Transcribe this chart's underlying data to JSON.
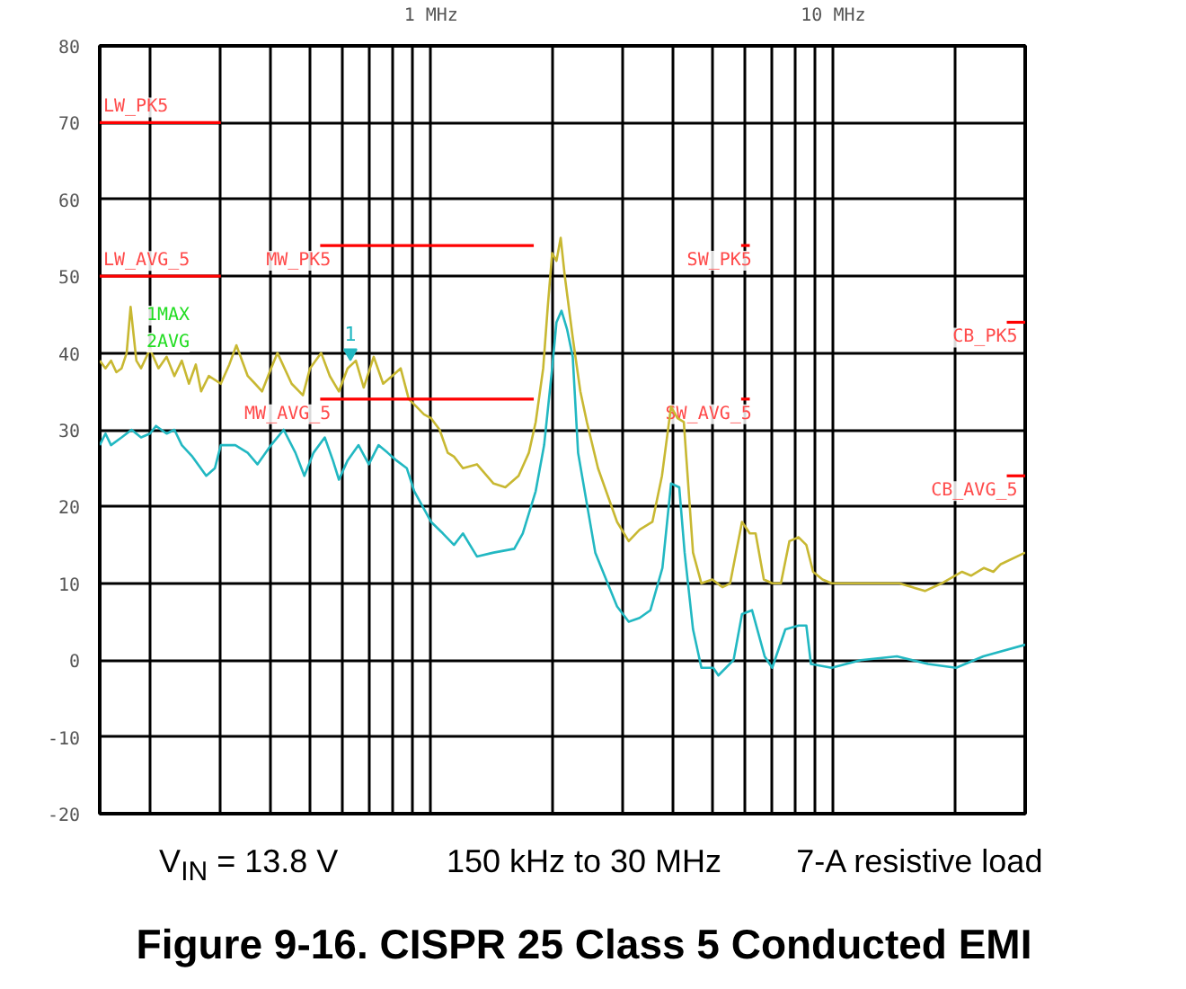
{
  "chart_data": {
    "type": "line",
    "title": "Figure 9-16. CISPR 25 Class 5 Conducted EMI",
    "xlim": [
      0.15,
      30
    ],
    "ylim": [
      -20,
      80
    ],
    "xticks": [
      {
        "value": 0.2,
        "label": null
      },
      {
        "value": 0.3,
        "label": null
      },
      {
        "value": 0.4,
        "label": null
      },
      {
        "value": 0.5,
        "label": null
      },
      {
        "value": 0.6,
        "label": null
      },
      {
        "value": 0.7,
        "label": null
      },
      {
        "value": 0.8,
        "label": null
      },
      {
        "value": 0.9,
        "label": null
      },
      {
        "value": 1,
        "label": "1 MHz"
      },
      {
        "value": 2,
        "label": null
      },
      {
        "value": 3,
        "label": null
      },
      {
        "value": 4,
        "label": null
      },
      {
        "value": 5,
        "label": null
      },
      {
        "value": 6,
        "label": null
      },
      {
        "value": 7,
        "label": null
      },
      {
        "value": 8,
        "label": null
      },
      {
        "value": 9,
        "label": null
      },
      {
        "value": 10,
        "label": "10 MHz"
      },
      {
        "value": 20,
        "label": null
      }
    ],
    "yticks": [
      -20,
      -10,
      0,
      10,
      20,
      30,
      40,
      50,
      60,
      70,
      80
    ],
    "log": "x",
    "grid": true,
    "marker": "none",
    "line_style": "solid",
    "series": [
      {
        "color": "#c8b832",
        "x": [
          0.15,
          0.155,
          0.16,
          0.165,
          0.17,
          0.175,
          0.179,
          0.185,
          0.19,
          0.2,
          0.21,
          0.22,
          0.23,
          0.24,
          0.25,
          0.26,
          0.268,
          0.28,
          0.3,
          0.315,
          0.328,
          0.35,
          0.365,
          0.38,
          0.4,
          0.415,
          0.45,
          0.48,
          0.5,
          0.533,
          0.56,
          0.59,
          0.62,
          0.65,
          0.68,
          0.72,
          0.76,
          0.8,
          0.84,
          0.88,
          0.92,
          0.96,
          1.0,
          1.05,
          1.1,
          1.14,
          1.2,
          1.3,
          1.43,
          1.53,
          1.65,
          1.75,
          1.82,
          1.9,
          1.95,
          2.0,
          2.05,
          2.1,
          2.15,
          2.25,
          2.35,
          2.44,
          2.6,
          2.9,
          3.1,
          3.3,
          3.55,
          3.75,
          3.95,
          4.1,
          4.25,
          4.48,
          4.7,
          5.0,
          5.3,
          5.54,
          5.93,
          6.2,
          6.41,
          6.72,
          7.05,
          7.41,
          7.78,
          8.2,
          8.57,
          8.91,
          9.4,
          9.9,
          11,
          12,
          13,
          14.6,
          16.9,
          18.6,
          20.9,
          22,
          23.7,
          25,
          26.1,
          30
        ],
        "values": [
          39,
          38,
          39,
          37.5,
          38,
          40,
          46,
          39,
          38,
          40.5,
          38,
          39.5,
          37,
          39,
          36,
          38.5,
          35,
          37,
          36,
          38.5,
          41,
          37,
          36,
          35,
          38,
          40,
          36,
          34.5,
          38,
          40,
          37,
          35,
          38,
          39,
          35.5,
          39.5,
          36,
          37,
          38,
          34,
          33,
          32,
          31.5,
          30,
          27,
          26.5,
          25,
          25.5,
          23,
          22.5,
          24,
          27,
          31,
          38,
          46,
          53,
          52,
          55,
          50,
          42,
          35,
          31,
          25,
          18,
          15.5,
          17,
          18,
          24,
          33,
          31.5,
          31,
          14,
          10,
          10.5,
          9.5,
          10,
          18,
          16.5,
          16.5,
          10.5,
          10,
          10,
          15.5,
          16,
          15,
          11.5,
          10.5,
          10,
          10,
          10,
          10,
          10,
          9,
          10,
          11.5,
          11,
          12,
          11.5,
          12.5,
          14
        ]
      },
      {
        "color": "#22b8c2",
        "x": [
          0.15,
          0.155,
          0.16,
          0.17,
          0.18,
          0.19,
          0.2,
          0.207,
          0.22,
          0.23,
          0.24,
          0.255,
          0.276,
          0.29,
          0.3,
          0.326,
          0.35,
          0.37,
          0.4,
          0.43,
          0.46,
          0.484,
          0.51,
          0.544,
          0.57,
          0.59,
          0.62,
          0.66,
          0.7,
          0.74,
          0.78,
          0.82,
          0.87,
          0.908,
          1.0,
          1.07,
          1.14,
          1.2,
          1.3,
          1.43,
          1.61,
          1.69,
          1.82,
          1.91,
          2.0,
          2.05,
          2.11,
          2.18,
          2.25,
          2.32,
          2.56,
          2.9,
          3.1,
          3.3,
          3.51,
          3.76,
          3.95,
          4.14,
          4.27,
          4.48,
          4.7,
          5.03,
          5.18,
          5.65,
          5.93,
          6.28,
          6.75,
          7.05,
          7.6,
          8.2,
          8.57,
          8.8,
          9.9,
          11.7,
          14.4,
          17.2,
          20.2,
          23.6,
          30
        ],
        "values": [
          28,
          29.5,
          28,
          29,
          30,
          29,
          29.5,
          30.5,
          29.5,
          30,
          28,
          26.5,
          24,
          25,
          28,
          28,
          27,
          25.5,
          28,
          30,
          27,
          24,
          27,
          29,
          26,
          23.5,
          26,
          28,
          25.5,
          28,
          27,
          26,
          25,
          22,
          18,
          16.5,
          15,
          16.5,
          13.5,
          14,
          14.5,
          16.5,
          22,
          28,
          38,
          44,
          45.5,
          43,
          39.5,
          27,
          14,
          7,
          5,
          5.5,
          6.5,
          12,
          23,
          22.5,
          14,
          4,
          -1,
          -1,
          -2,
          0,
          6,
          6.5,
          0.5,
          -1,
          4,
          4.5,
          4.5,
          -0.5,
          -1,
          0,
          0.5,
          -0.5,
          -1,
          0.5,
          2
        ]
      },
      {
        "name": "LW_PK5",
        "color": "#ff0000",
        "x": [
          0.15,
          0.3
        ],
        "values": [
          70,
          70
        ]
      },
      {
        "name": "LW_AVG_5",
        "color": "#ff0000",
        "x": [
          0.15,
          0.3
        ],
        "values": [
          50,
          50
        ]
      },
      {
        "name": "MW_PK5",
        "color": "#ff0000",
        "x": [
          0.53,
          1.8
        ],
        "values": [
          54,
          54
        ]
      },
      {
        "name": "MW_AVG_5",
        "color": "#ff0000",
        "x": [
          0.53,
          1.8
        ],
        "values": [
          34,
          34
        ]
      },
      {
        "name": "SW_PK5",
        "color": "#ff0000",
        "x": [
          5.9,
          6.2
        ],
        "values": [
          54,
          54
        ]
      },
      {
        "name": "SW_AVG_5",
        "color": "#ff0000",
        "x": [
          5.9,
          6.2
        ],
        "values": [
          34,
          34
        ]
      },
      {
        "name": "CB_PK5",
        "color": "#ff0000",
        "x": [
          27,
          30
        ],
        "values": [
          44,
          44
        ]
      },
      {
        "name": "CB_AVG_5",
        "color": "#ff0000",
        "x": [
          27,
          30
        ],
        "values": [
          24,
          24
        ]
      }
    ],
    "annotations": [
      "1MAX",
      "2AVG",
      {
        "text": "1",
        "x": 0.63,
        "y": 40
      },
      "V$_{IN}$ = 13.8 V",
      "150 kHz to 30 MHz",
      "7-A resistive load"
    ]
  }
}
